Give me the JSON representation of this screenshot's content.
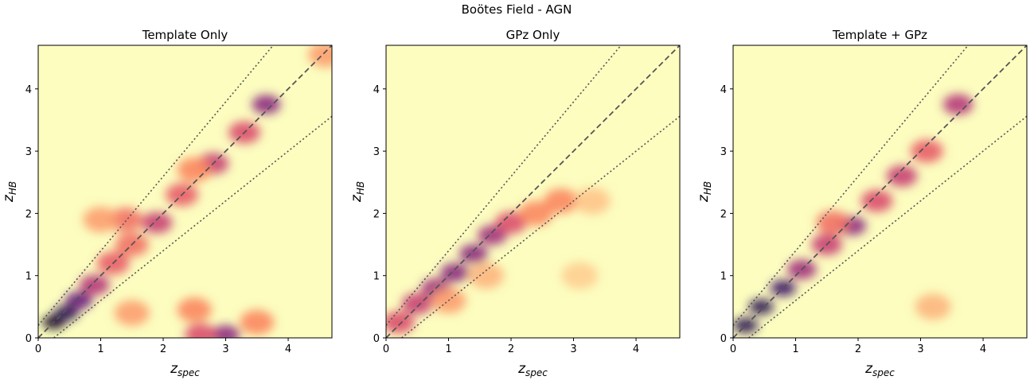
{
  "suptitle": "Boötes Field - AGN",
  "colors": {
    "colormap": [
      "#fcfdbf",
      "#fec287",
      "#fb8761",
      "#e3516a",
      "#b6377a",
      "#822681",
      "#51127c",
      "#1d1147",
      "#000004"
    ],
    "one_to_one_line": "#555555",
    "band_lines": "#555555"
  },
  "chart_data": [
    {
      "type": "heatmap",
      "title": "Template Only",
      "xlabel": "z_spec",
      "ylabel": "z_HB",
      "xlim": [
        0,
        4.7
      ],
      "ylim": [
        0,
        4.7
      ],
      "xticks": [
        0,
        1,
        2,
        3,
        4
      ],
      "yticks": [
        0,
        1,
        2,
        3,
        4
      ],
      "reference_lines": [
        {
          "name": "one-to-one",
          "style": "dashed",
          "x": [
            0,
            4.7
          ],
          "y": [
            0,
            4.7
          ]
        },
        {
          "name": "upper bound",
          "style": "dotted",
          "x": [
            0,
            3.76
          ],
          "y": [
            0.2,
            4.7
          ]
        },
        {
          "name": "lower bound",
          "style": "dotted",
          "x": [
            0.25,
            4.7
          ],
          "y": [
            0,
            3.56
          ]
        }
      ],
      "density_features": [
        {
          "x": 0.25,
          "y": 0.25,
          "level": 0.95
        },
        {
          "x": 0.45,
          "y": 0.4,
          "level": 0.85
        },
        {
          "x": 0.65,
          "y": 0.6,
          "level": 0.7
        },
        {
          "x": 0.9,
          "y": 0.85,
          "level": 0.5
        },
        {
          "x": 1.2,
          "y": 1.2,
          "level": 0.35
        },
        {
          "x": 1.5,
          "y": 1.5,
          "level": 0.3
        },
        {
          "x": 1.9,
          "y": 1.85,
          "level": 0.45
        },
        {
          "x": 2.3,
          "y": 2.3,
          "level": 0.35
        },
        {
          "x": 2.8,
          "y": 2.8,
          "level": 0.45
        },
        {
          "x": 3.3,
          "y": 3.3,
          "level": 0.4
        },
        {
          "x": 3.65,
          "y": 3.75,
          "level": 0.6
        },
        {
          "x": 4.6,
          "y": 4.55,
          "level": 0.2
        },
        {
          "x": 1.4,
          "y": 1.9,
          "level": 0.3
        },
        {
          "x": 1.0,
          "y": 1.9,
          "level": 0.2
        },
        {
          "x": 2.5,
          "y": 2.7,
          "level": 0.25
        },
        {
          "x": 3.0,
          "y": 0.05,
          "level": 0.6
        },
        {
          "x": 2.6,
          "y": 0.05,
          "level": 0.4
        },
        {
          "x": 2.5,
          "y": 0.45,
          "level": 0.25
        },
        {
          "x": 3.5,
          "y": 0.25,
          "level": 0.25
        },
        {
          "x": 1.5,
          "y": 0.4,
          "level": 0.2
        }
      ]
    },
    {
      "type": "heatmap",
      "title": "GPz Only",
      "xlabel": "z_spec",
      "ylabel": "z_HB",
      "xlim": [
        0,
        4.7
      ],
      "ylim": [
        0,
        4.7
      ],
      "xticks": [
        0,
        1,
        2,
        3,
        4
      ],
      "yticks": [
        0,
        1,
        2,
        3,
        4
      ],
      "reference_lines": [
        {
          "name": "one-to-one",
          "style": "dashed",
          "x": [
            0,
            4.7
          ],
          "y": [
            0,
            4.7
          ]
        },
        {
          "name": "upper bound",
          "style": "dotted",
          "x": [
            0,
            3.76
          ],
          "y": [
            0.2,
            4.7
          ]
        },
        {
          "name": "lower bound",
          "style": "dotted",
          "x": [
            0.25,
            4.7
          ],
          "y": [
            0,
            3.56
          ]
        }
      ],
      "density_features": [
        {
          "x": 0.2,
          "y": 0.25,
          "level": 0.4
        },
        {
          "x": 0.5,
          "y": 0.55,
          "level": 0.45
        },
        {
          "x": 0.8,
          "y": 0.8,
          "level": 0.55
        },
        {
          "x": 1.1,
          "y": 1.05,
          "level": 0.6
        },
        {
          "x": 1.4,
          "y": 1.35,
          "level": 0.6
        },
        {
          "x": 1.7,
          "y": 1.65,
          "level": 0.55
        },
        {
          "x": 2.0,
          "y": 1.85,
          "level": 0.4
        },
        {
          "x": 2.4,
          "y": 2.0,
          "level": 0.25
        },
        {
          "x": 2.8,
          "y": 2.2,
          "level": 0.25
        },
        {
          "x": 3.3,
          "y": 2.2,
          "level": 0.12
        },
        {
          "x": 1.0,
          "y": 0.6,
          "level": 0.2
        },
        {
          "x": 1.6,
          "y": 1.0,
          "level": 0.15
        },
        {
          "x": 3.1,
          "y": 1.0,
          "level": 0.1
        }
      ]
    },
    {
      "type": "heatmap",
      "title": "Template + GPz",
      "xlabel": "z_spec",
      "ylabel": "z_HB",
      "xlim": [
        0,
        4.7
      ],
      "ylim": [
        0,
        4.7
      ],
      "xticks": [
        0,
        1,
        2,
        3,
        4
      ],
      "yticks": [
        0,
        1,
        2,
        3,
        4
      ],
      "reference_lines": [
        {
          "name": "one-to-one",
          "style": "dashed",
          "x": [
            0,
            4.7
          ],
          "y": [
            0,
            4.7
          ]
        },
        {
          "name": "upper bound",
          "style": "dotted",
          "x": [
            0,
            3.76
          ],
          "y": [
            0.2,
            4.7
          ]
        },
        {
          "name": "lower bound",
          "style": "dotted",
          "x": [
            0.25,
            4.7
          ],
          "y": [
            0,
            3.56
          ]
        }
      ],
      "density_features": [
        {
          "x": 0.2,
          "y": 0.2,
          "level": 0.85
        },
        {
          "x": 0.45,
          "y": 0.5,
          "level": 0.85
        },
        {
          "x": 0.8,
          "y": 0.8,
          "level": 0.8
        },
        {
          "x": 1.1,
          "y": 1.1,
          "level": 0.55
        },
        {
          "x": 1.5,
          "y": 1.5,
          "level": 0.45
        },
        {
          "x": 1.9,
          "y": 1.8,
          "level": 0.6
        },
        {
          "x": 2.3,
          "y": 2.2,
          "level": 0.4
        },
        {
          "x": 2.7,
          "y": 2.6,
          "level": 0.45
        },
        {
          "x": 3.1,
          "y": 3.0,
          "level": 0.35
        },
        {
          "x": 3.6,
          "y": 3.75,
          "level": 0.5
        },
        {
          "x": 1.6,
          "y": 1.85,
          "level": 0.3
        },
        {
          "x": 3.2,
          "y": 0.5,
          "level": 0.15
        }
      ]
    }
  ]
}
